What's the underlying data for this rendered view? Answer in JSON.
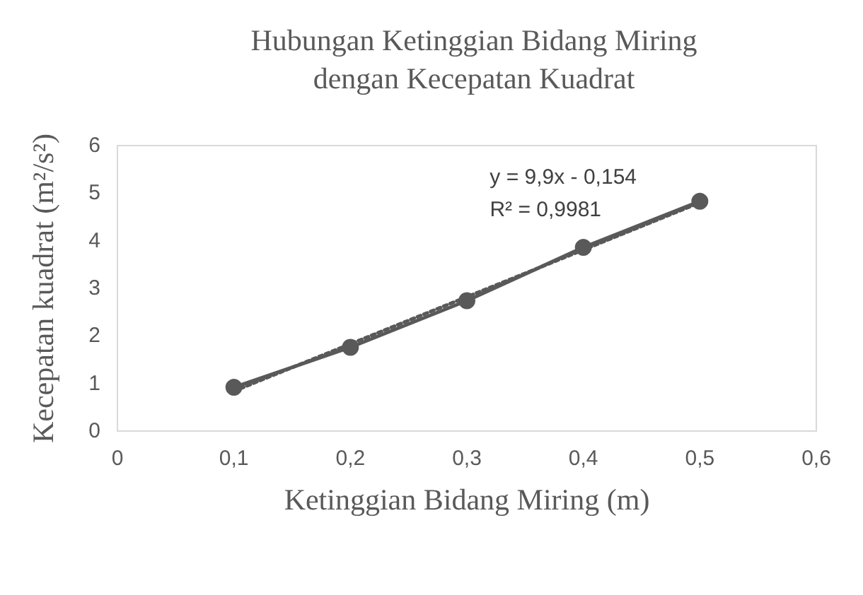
{
  "chart_data": {
    "type": "line",
    "title": "Hubungan Ketinggian Bidang Miring\ndengan Kecepatan Kuadrat",
    "xlabel": "Ketinggian Bidang Miring (m)",
    "ylabel": "Kecepatan kuadrat (m²/s²)",
    "x": [
      0.1,
      0.2,
      0.3,
      0.4,
      0.5
    ],
    "series": [
      {
        "color": "#595959",
        "values": [
          0.92,
          1.76,
          2.74,
          3.86,
          4.83
        ],
        "marker": "circle",
        "line_style": "solid"
      },
      {
        "type": "line",
        "x": [
          0.1,
          0.5
        ],
        "values": [
          0.84,
          4.8
        ],
        "color": "#595959",
        "marker": "none",
        "line_style": "dotted"
      }
    ],
    "annotations": [
      "y = 9,9x - 0,154",
      "R² = 0,9981"
    ],
    "xlim": [
      0,
      0.6
    ],
    "xticks": [
      {
        "value": 0,
        "label": "0"
      },
      {
        "value": 0.1,
        "label": "0,1"
      },
      {
        "value": 0.2,
        "label": "0,2"
      },
      {
        "value": 0.3,
        "label": "0,3"
      },
      {
        "value": 0.4,
        "label": "0,4"
      },
      {
        "value": 0.5,
        "label": "0,5"
      },
      {
        "value": 0.6,
        "label": "0,6"
      }
    ],
    "ylim": [
      0,
      6
    ],
    "yticks": [
      0,
      1,
      2,
      3,
      4,
      5,
      6
    ],
    "grid": false
  }
}
